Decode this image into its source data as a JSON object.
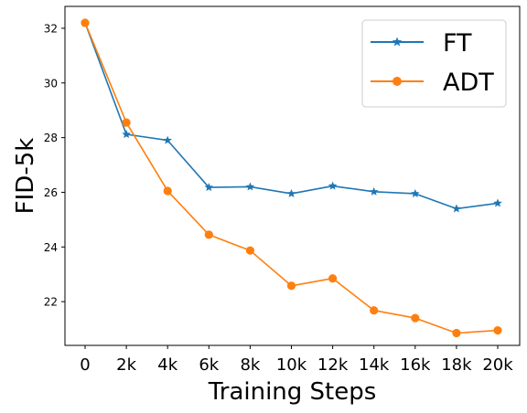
{
  "chart_data": {
    "type": "line",
    "xlabel": "Training Steps",
    "ylabel": "FID-5k",
    "categories": [
      "0",
      "2k",
      "4k",
      "6k",
      "8k",
      "10k",
      "12k",
      "14k",
      "16k",
      "18k",
      "20k"
    ],
    "yticks": [
      "22",
      "24",
      "26",
      "28",
      "30",
      "32"
    ],
    "ylim": [
      20.4,
      32.8
    ],
    "grid": false,
    "legend_position": "top-right",
    "series": [
      {
        "name": "FT",
        "color": "#1f77b4",
        "marker": "star",
        "values": [
          32.2,
          28.12,
          27.9,
          26.18,
          26.2,
          25.95,
          26.23,
          26.02,
          25.95,
          25.4,
          25.6
        ]
      },
      {
        "name": "ADT",
        "color": "#ff7f0e",
        "marker": "circle",
        "values": [
          32.2,
          28.55,
          26.05,
          24.45,
          23.87,
          22.58,
          22.85,
          21.68,
          21.4,
          20.85,
          20.95
        ]
      }
    ]
  }
}
